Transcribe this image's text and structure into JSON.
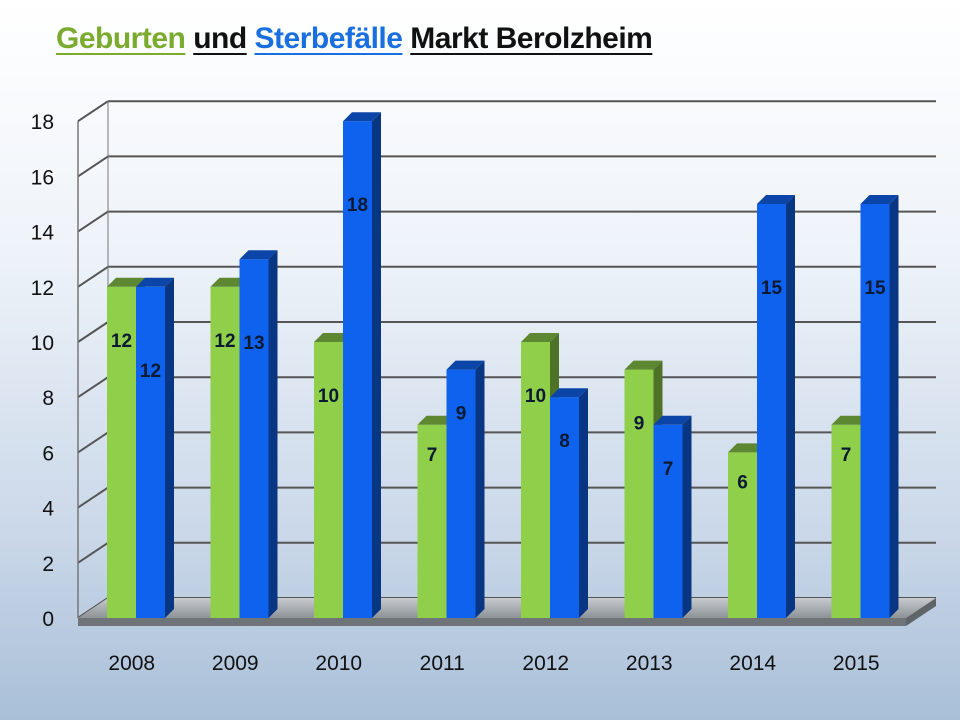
{
  "title": {
    "births": "Geburten",
    "and": "und",
    "deaths": "Sterbefälle",
    "place": "Markt Berolzheim"
  },
  "colors": {
    "births": "#8fcf4a",
    "deaths": "#0f62ee",
    "grid": "#555555"
  },
  "chart_data": {
    "type": "bar",
    "title": "Geburten und Sterbefälle Markt Berolzheim",
    "categories": [
      "2008",
      "2009",
      "2010",
      "2011",
      "2012",
      "2013",
      "2014",
      "2015"
    ],
    "series": [
      {
        "name": "Geburten",
        "values": [
          12,
          12,
          10,
          7,
          10,
          9,
          6,
          7
        ]
      },
      {
        "name": "Sterbefälle",
        "values": [
          12,
          13,
          18,
          9,
          8,
          7,
          15,
          15
        ]
      }
    ],
    "ylim": [
      0,
      18
    ],
    "yticks": [
      "0",
      "2",
      "4",
      "6",
      "8",
      "10",
      "12",
      "14",
      "16",
      "18"
    ],
    "grid": true,
    "data_labels": true,
    "style": "3d-bars"
  }
}
